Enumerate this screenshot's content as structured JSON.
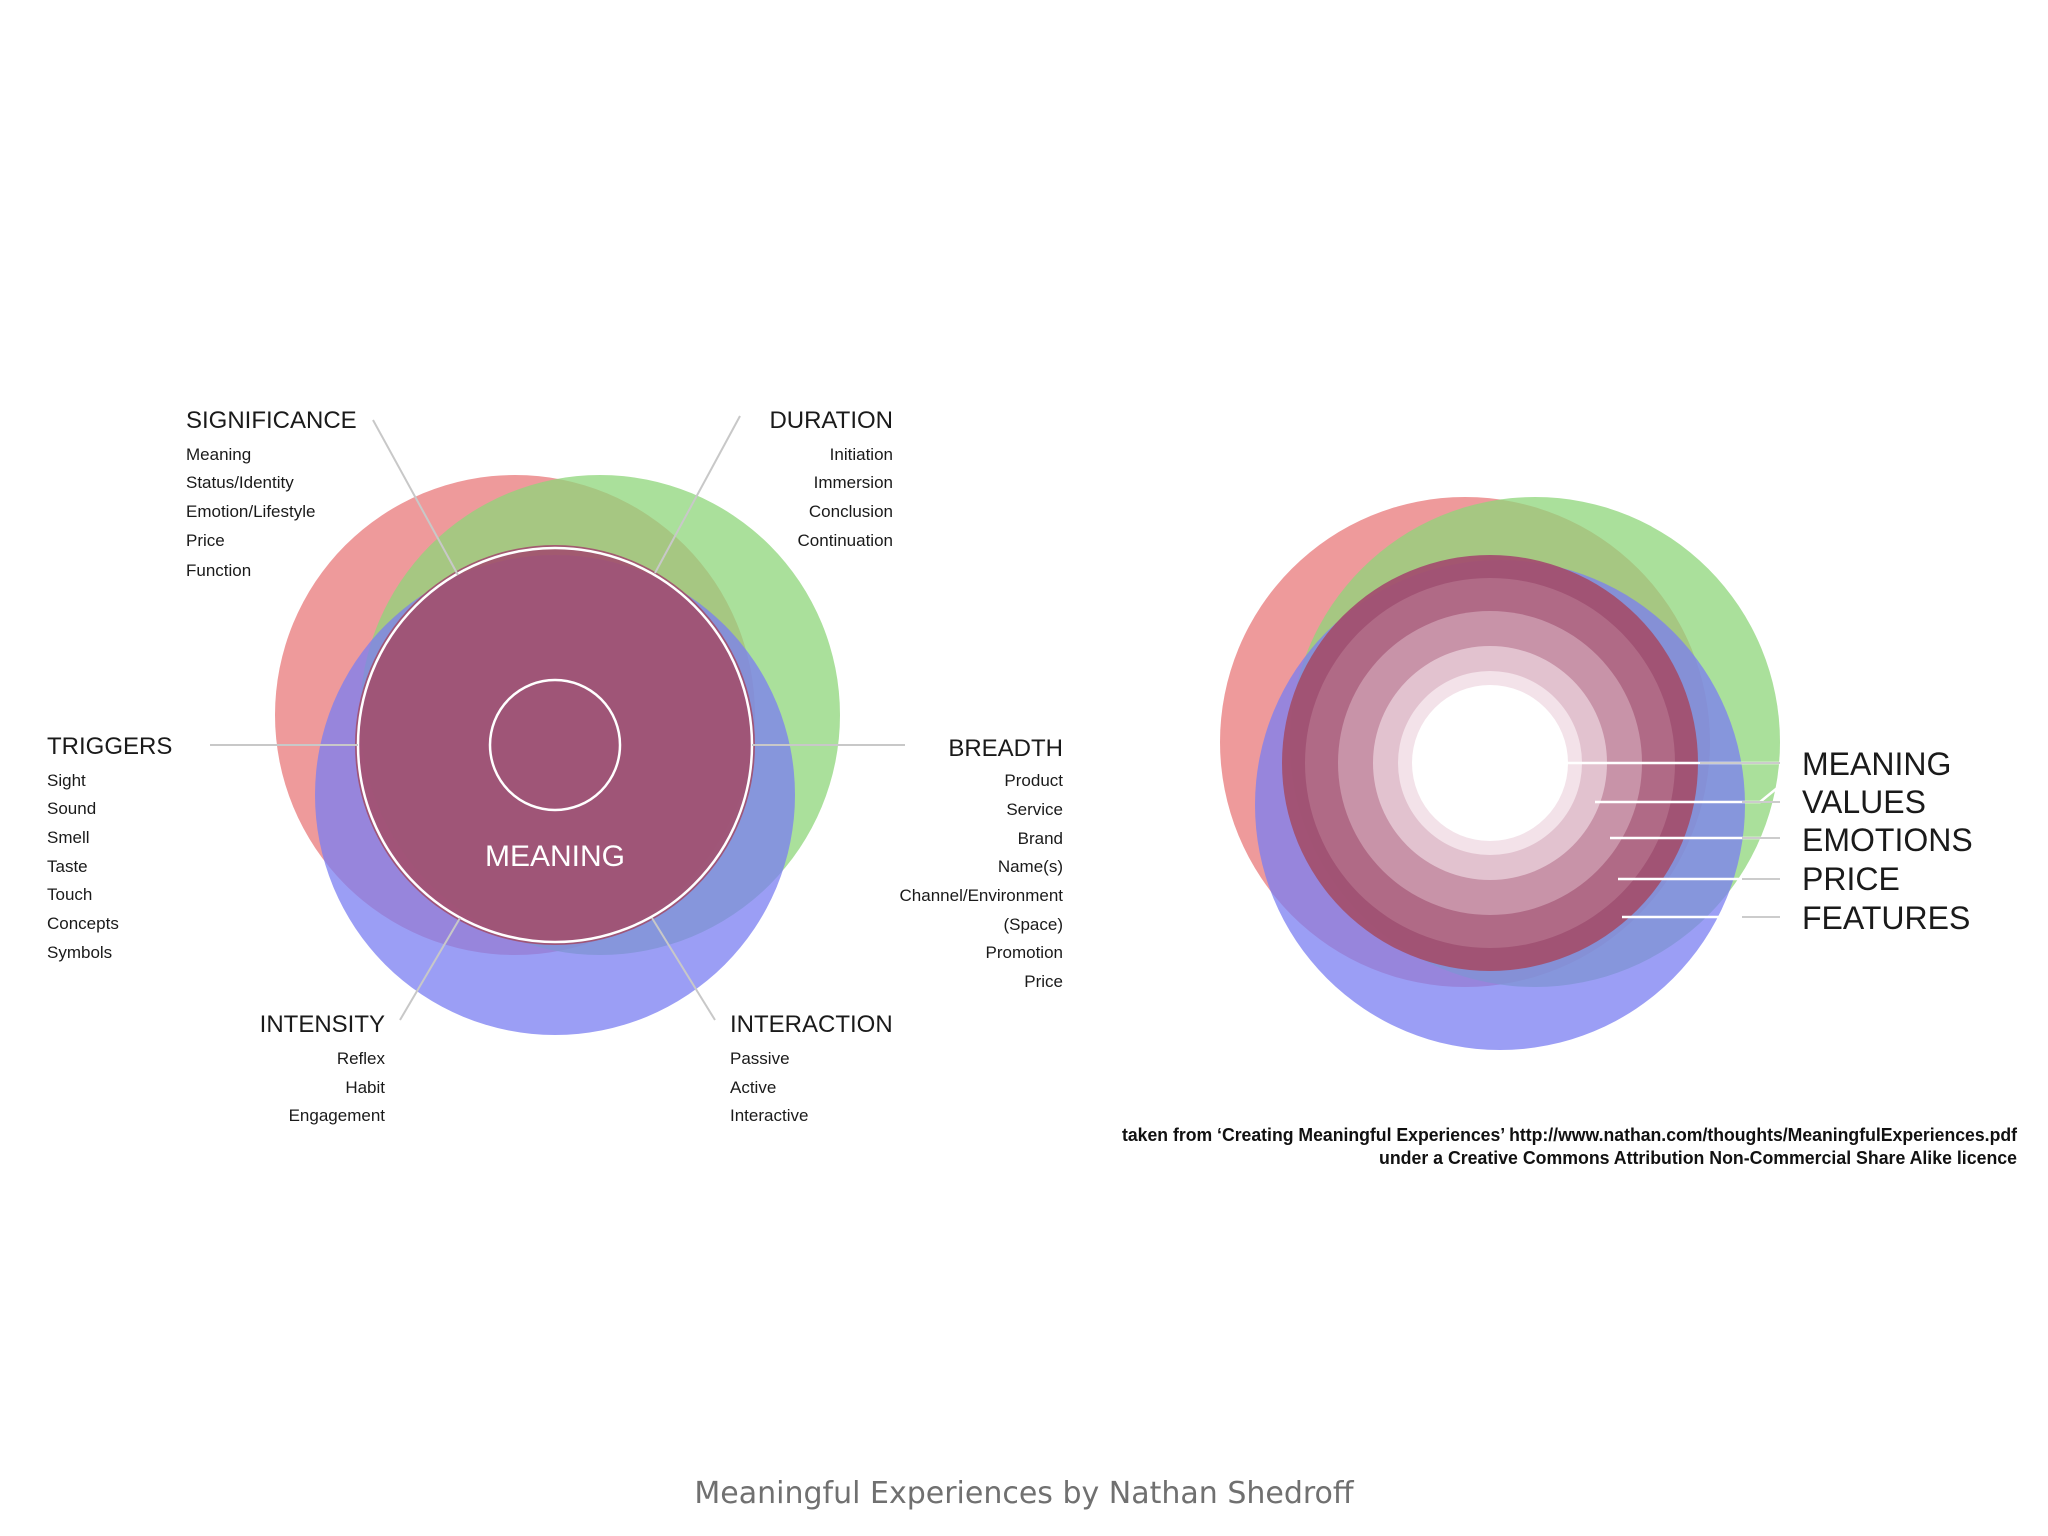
{
  "left_diagram": {
    "center_label": "MEANING",
    "categories": [
      {
        "key": "significance",
        "heading": "SIGNIFICANCE",
        "items": [
          "Meaning",
          "Status/Identity",
          "Emotion/Lifestyle",
          "Price",
          "Function"
        ]
      },
      {
        "key": "duration",
        "heading": "DURATION",
        "items": [
          "Initiation",
          "Immersion",
          "Conclusion",
          "Continuation"
        ]
      },
      {
        "key": "triggers",
        "heading": "TRIGGERS",
        "items": [
          "Sight",
          "Sound",
          "Smell",
          "Taste",
          "Touch",
          "Concepts",
          "Symbols"
        ]
      },
      {
        "key": "breadth",
        "heading": "BREADTH",
        "items": [
          "Product",
          "Service",
          "Brand",
          "Name(s)",
          "Channel/Environment",
          "(Space)",
          "Promotion",
          "Price"
        ]
      },
      {
        "key": "intensity",
        "heading": "INTENSITY",
        "items": [
          "Reflex",
          "Habit",
          "Engagement"
        ]
      },
      {
        "key": "interaction",
        "heading": "INTERACTION",
        "items": [
          "Passive",
          "Active",
          "Interactive"
        ]
      }
    ]
  },
  "right_diagram": {
    "layers": [
      "MEANING",
      "VALUES",
      "EMOTIONS",
      "PRICE",
      "FEATURES"
    ]
  },
  "credit": {
    "line1": "taken from ‘Creating Meaningful Experiences’ http://www.nathan.com/thoughts/MeaningfulExperiences.pdf",
    "line2": "under a Creative Commons Attribution Non-Commercial Share Alike licence"
  },
  "caption": "Meaningful Experiences by Nathan Shedroff",
  "colors": {
    "red": "#e8787a",
    "green": "#8ed67a",
    "blue": "#7a7ef2",
    "core": "#a2506f"
  }
}
